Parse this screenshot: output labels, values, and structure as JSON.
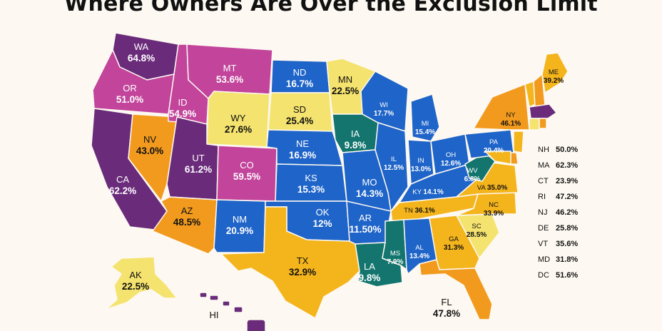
{
  "title": "Where Owners Are Over the Exclusion Limit",
  "colors": {
    "purple": "#6a2b7a",
    "magenta": "#c2449b",
    "blue": "#1f64c8",
    "teal": "#13756e",
    "yellow": "#f5e36f",
    "gold": "#f4b41c",
    "orange": "#f29a1e",
    "background": "#fdf9f2"
  },
  "states": {
    "WA": {
      "abbr": "WA",
      "value": "64.8%"
    },
    "OR": {
      "abbr": "OR",
      "value": "51.0%"
    },
    "CA": {
      "abbr": "CA",
      "value": "62.2%"
    },
    "NV": {
      "abbr": "NV",
      "value": "43.0%"
    },
    "ID": {
      "abbr": "ID",
      "value": "54.9%"
    },
    "MT": {
      "abbr": "MT",
      "value": "53.6%"
    },
    "WY": {
      "abbr": "WY",
      "value": "27.6%"
    },
    "UT": {
      "abbr": "UT",
      "value": "61.2%"
    },
    "AZ": {
      "abbr": "AZ",
      "value": "48.5%"
    },
    "CO": {
      "abbr": "CO",
      "value": "59.5%"
    },
    "NM": {
      "abbr": "NM",
      "value": "20.9%"
    },
    "ND": {
      "abbr": "ND",
      "value": "16.7%"
    },
    "SD": {
      "abbr": "SD",
      "value": "25.4%"
    },
    "NE": {
      "abbr": "NE",
      "value": "16.9%"
    },
    "KS": {
      "abbr": "KS",
      "value": "15.3%"
    },
    "OK": {
      "abbr": "OK",
      "value": "12%"
    },
    "TX": {
      "abbr": "TX",
      "value": "32.9%"
    },
    "MN": {
      "abbr": "MN",
      "value": "22.5%"
    },
    "IA": {
      "abbr": "IA",
      "value": "9.8%"
    },
    "MO": {
      "abbr": "MO",
      "value": "14.3%"
    },
    "AR": {
      "abbr": "AR",
      "value": "11.50%"
    },
    "LA": {
      "abbr": "LA",
      "value": "9.8%"
    },
    "WI": {
      "abbr": "WI",
      "value": "17.7%"
    },
    "IL": {
      "abbr": "IL",
      "value": "12.5%"
    },
    "MS": {
      "abbr": "MS",
      "value": "7.9%"
    },
    "MI": {
      "abbr": "MI",
      "value": "15.4%"
    },
    "IN": {
      "abbr": "IN",
      "value": "13.0%"
    },
    "KY": {
      "abbr": "KY",
      "value": "14.1%"
    },
    "TN": {
      "abbr": "TN",
      "value": "36.1%"
    },
    "AL": {
      "abbr": "AL",
      "value": "13.4%"
    },
    "OH": {
      "abbr": "OH",
      "value": "12.6%"
    },
    "GA": {
      "abbr": "GA",
      "value": "31.3%"
    },
    "FL": {
      "abbr": "FL",
      "value": "47.8%"
    },
    "SC": {
      "abbr": "SC",
      "value": "28.5%"
    },
    "NC": {
      "abbr": "NC",
      "value": "33.9%"
    },
    "VA": {
      "abbr": "VA",
      "value": "35.0%"
    },
    "WV": {
      "abbr": "WV",
      "value": "6.8%"
    },
    "PA": {
      "abbr": "PA",
      "value": "20.4%"
    },
    "NY": {
      "abbr": "NY",
      "value": "46.1%"
    },
    "ME": {
      "abbr": "ME",
      "value": "39.2%"
    },
    "AK": {
      "abbr": "AK",
      "value": "22.5%"
    },
    "HI": {
      "abbr": "HI",
      "value": ""
    }
  },
  "side_list": [
    {
      "abbr": "NH",
      "value": "50.0%"
    },
    {
      "abbr": "MA",
      "value": "62.3%"
    },
    {
      "abbr": "CT",
      "value": "23.9%"
    },
    {
      "abbr": "RI",
      "value": "47.2%"
    },
    {
      "abbr": "NJ",
      "value": "46.2%"
    },
    {
      "abbr": "DE",
      "value": "25.8%"
    },
    {
      "abbr": "VT",
      "value": "35.6%"
    },
    {
      "abbr": "MD",
      "value": "31.8%"
    },
    {
      "abbr": "DC",
      "value": "51.6%"
    }
  ]
}
